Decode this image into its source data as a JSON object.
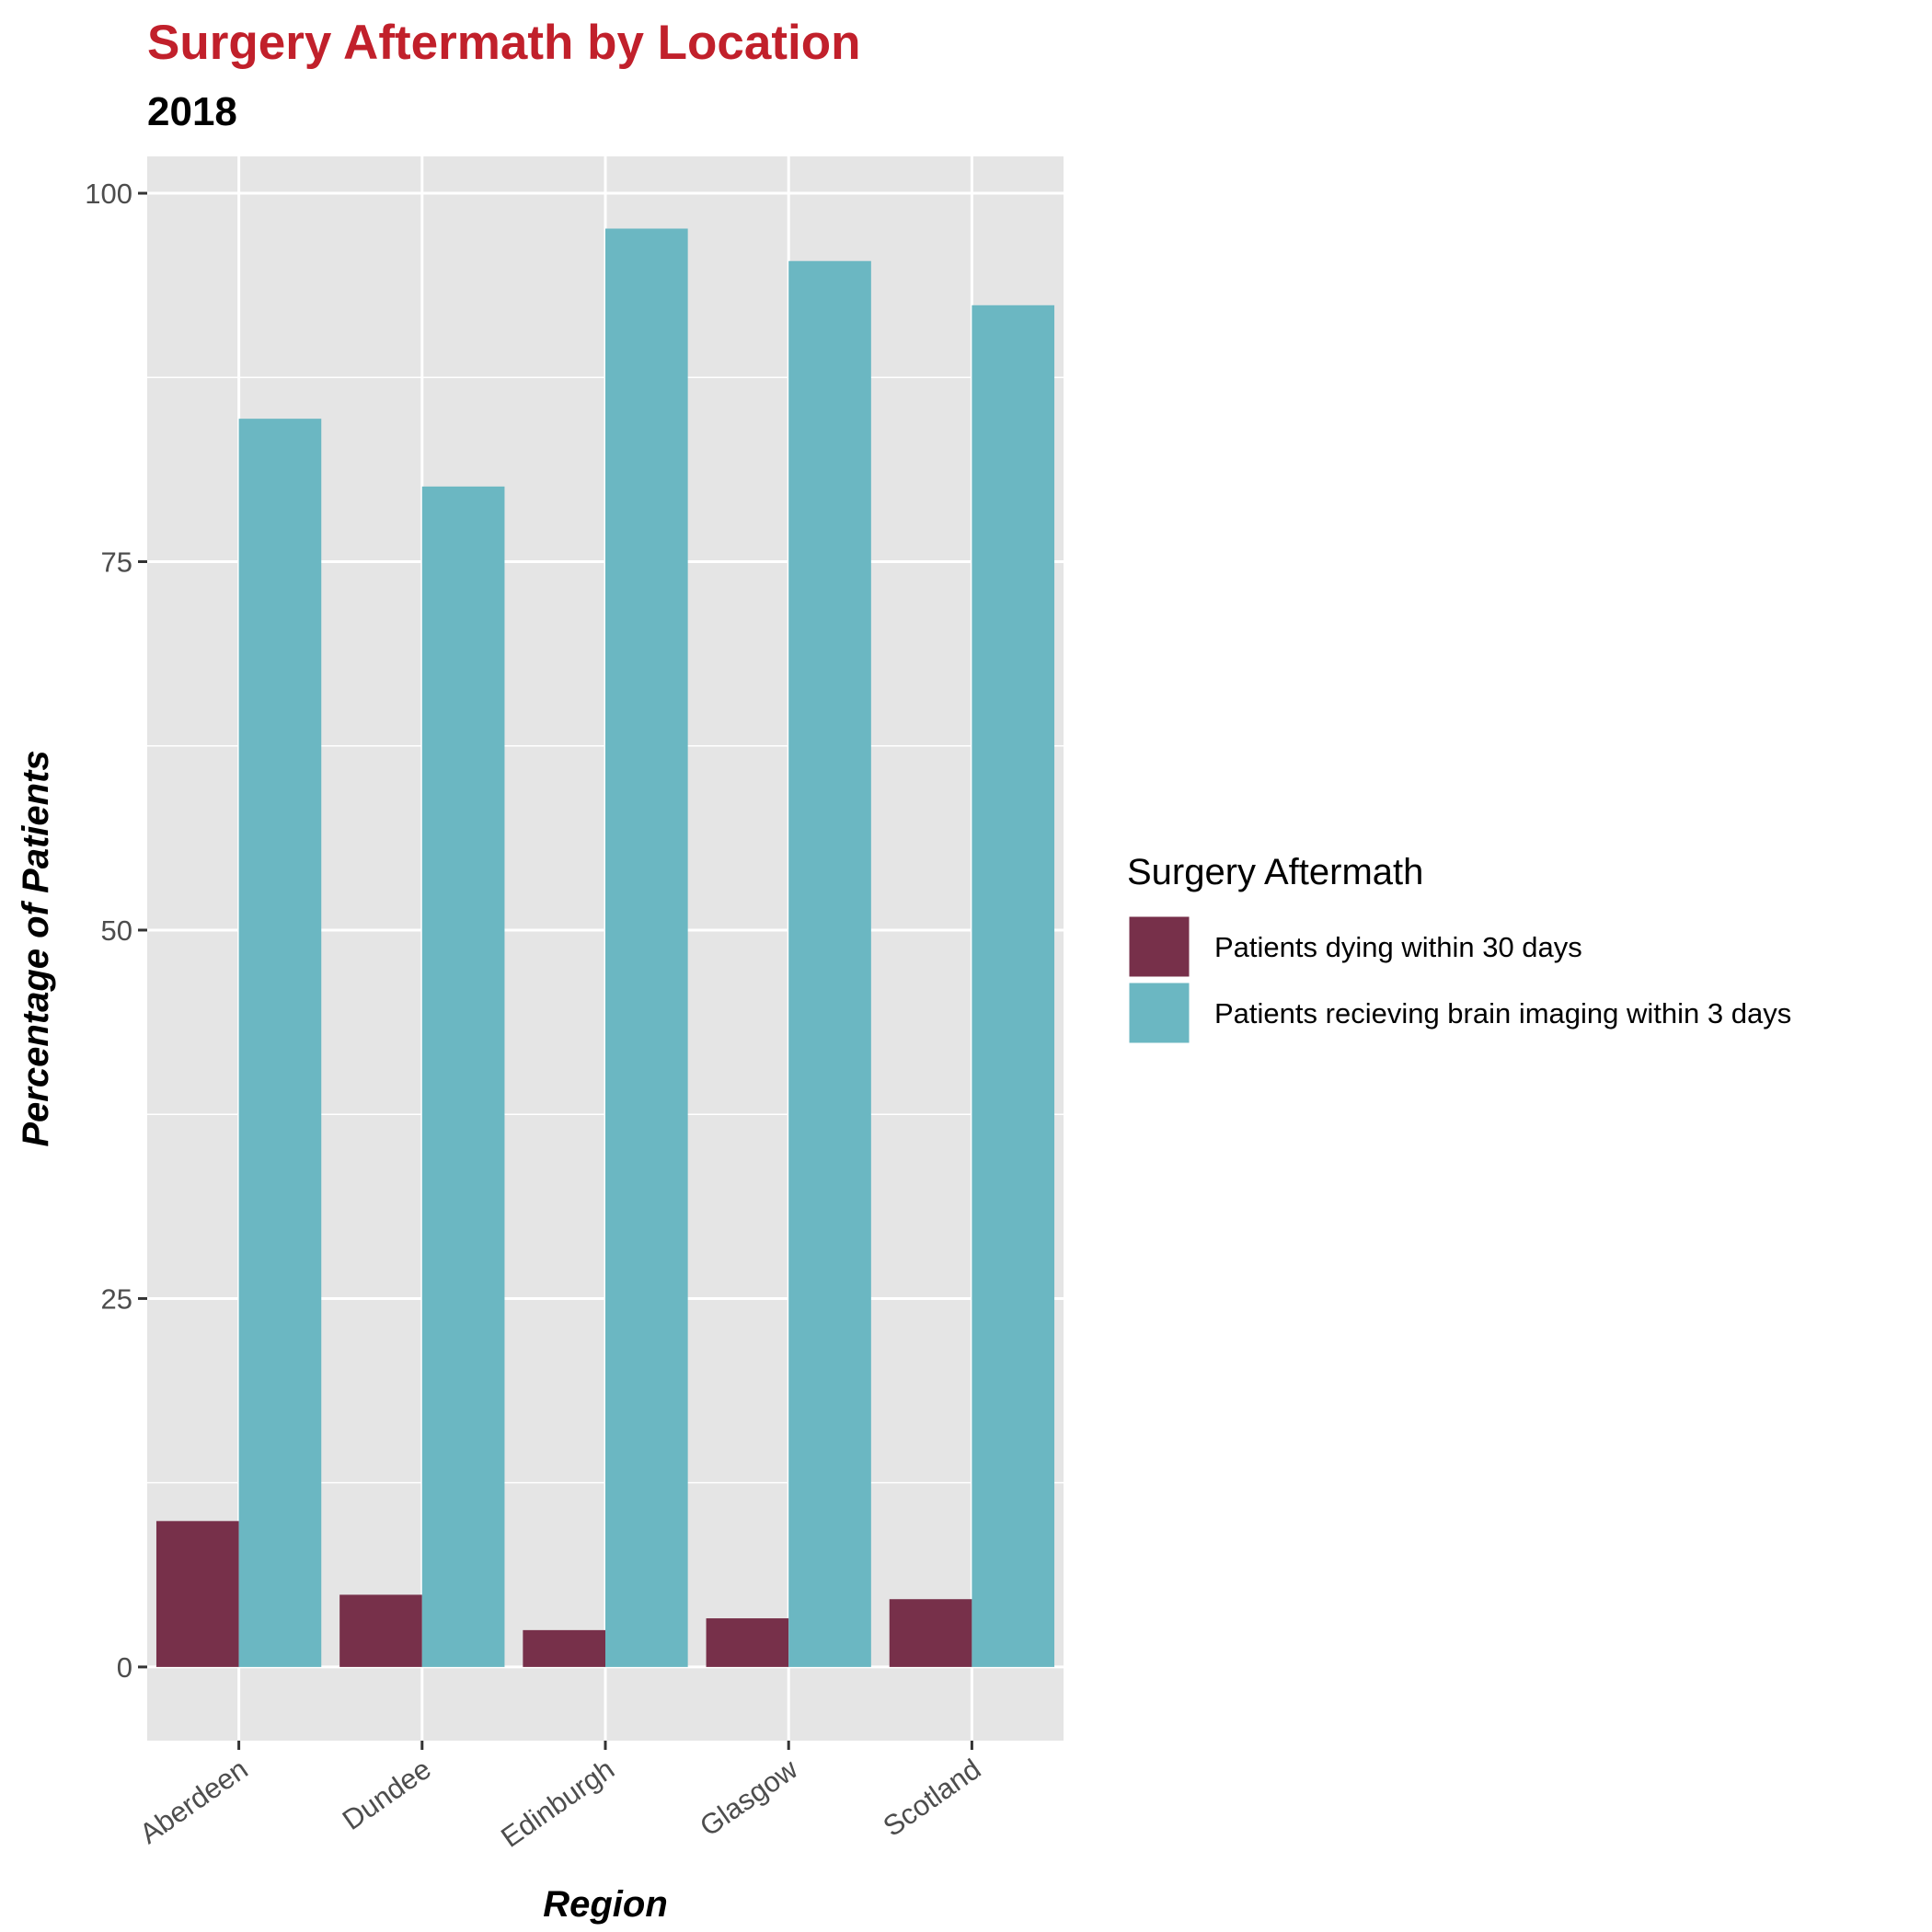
{
  "chart_data": {
    "type": "bar",
    "title": "Surgery Aftermath by Location",
    "subtitle": "2018",
    "xlabel": "Region",
    "ylabel": "Percentage of Patients",
    "categories": [
      "Aberdeen",
      "Dundee",
      "Edinburgh",
      "Glasgow",
      "Scotland"
    ],
    "series": [
      {
        "name": "Patients dying within 30 days",
        "color": "#77304a",
        "values": [
          9.9,
          4.9,
          2.5,
          3.3,
          4.6
        ]
      },
      {
        "name": "Patients recieving brain imaging within 3 days",
        "color": "#6bb7c2",
        "values": [
          84.7,
          80.1,
          97.6,
          95.4,
          92.4
        ]
      }
    ],
    "ylim": [
      -5,
      102.5
    ],
    "yticks": [
      0,
      25,
      50,
      75,
      100
    ],
    "grid": true,
    "panel_background": "#e5e5e5",
    "legend": {
      "title": "Surgery Aftermath",
      "position": "right"
    }
  }
}
